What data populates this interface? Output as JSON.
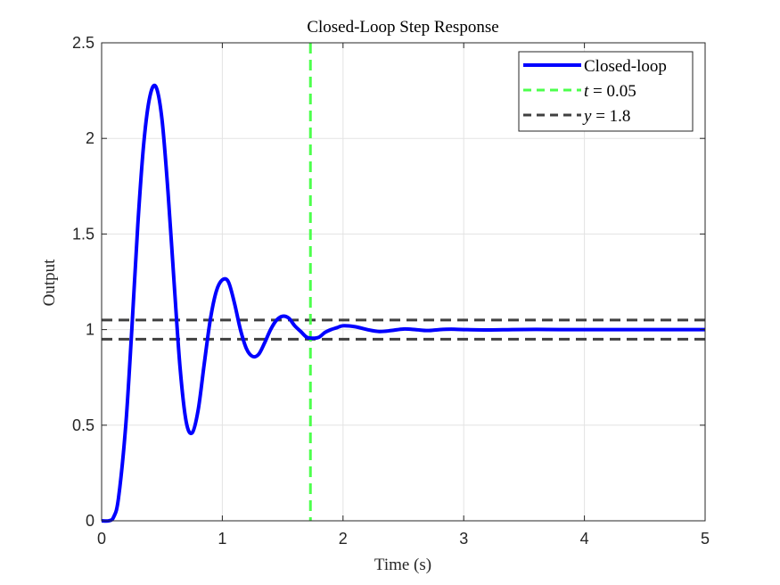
{
  "chart_data": {
    "type": "line",
    "title": "Closed-Loop Step Response",
    "xlabel": "Time (s)",
    "ylabel": "Output",
    "xlim": [
      0,
      5
    ],
    "ylim": [
      0,
      2.5
    ],
    "xticks": [
      0,
      1,
      2,
      3,
      4,
      5
    ],
    "xtick_labels": [
      "0",
      "1",
      "2",
      "3",
      "4",
      "5"
    ],
    "yticks": [
      0,
      0.5,
      1,
      1.5,
      2,
      2.5
    ],
    "ytick_labels": [
      "0",
      "0.5",
      "1",
      "1.5",
      "2",
      "2.5"
    ],
    "grid": true,
    "legend_position": "top-right",
    "legend": [
      {
        "label": "Closed-loop",
        "style": "solid",
        "color": "#0000ff"
      },
      {
        "label_italic": "t",
        "label_rest": " = 0.05",
        "style": "dashed",
        "color": "#4cff4c"
      },
      {
        "label_italic": "y",
        "label_rest": " = 1.8",
        "style": "dashed",
        "color": "#404040"
      }
    ],
    "series": [
      {
        "name": "Closed-loop",
        "color": "#0000ff",
        "x": [
          0,
          0.06,
          0.1,
          0.14,
          0.2,
          0.25,
          0.3,
          0.35,
          0.4,
          0.45,
          0.5,
          0.55,
          0.6,
          0.65,
          0.7,
          0.75,
          0.8,
          0.85,
          0.9,
          0.95,
          1.0,
          1.05,
          1.1,
          1.15,
          1.2,
          1.25,
          1.3,
          1.35,
          1.4,
          1.45,
          1.5,
          1.55,
          1.6,
          1.65,
          1.7,
          1.75,
          1.8,
          1.85,
          1.9,
          1.95,
          2.0,
          2.1,
          2.2,
          2.3,
          2.4,
          2.5,
          2.6,
          2.7,
          2.8,
          2.9,
          3.0,
          3.2,
          3.4,
          3.6,
          3.8,
          4.0,
          4.2,
          4.4,
          4.6,
          4.8,
          5.0
        ],
        "y": [
          0,
          0.0,
          0.02,
          0.12,
          0.5,
          1.0,
          1.55,
          1.98,
          2.22,
          2.27,
          2.1,
          1.72,
          1.25,
          0.8,
          0.52,
          0.46,
          0.58,
          0.82,
          1.05,
          1.2,
          1.26,
          1.25,
          1.14,
          1.0,
          0.9,
          0.86,
          0.87,
          0.93,
          1.0,
          1.05,
          1.07,
          1.06,
          1.02,
          0.99,
          0.96,
          0.955,
          0.96,
          0.985,
          1.0,
          1.01,
          1.02,
          1.015,
          1.0,
          0.99,
          0.995,
          1.003,
          1.0,
          0.995,
          1.0,
          1.002,
          1.0,
          0.998,
          1.0,
          1.001,
          1.0,
          1.0,
          1.0,
          1.0,
          1.0,
          1.0,
          1.0
        ]
      }
    ],
    "vlines": [
      {
        "x": 1.73,
        "color": "#4cff4c",
        "style": "dashed"
      }
    ],
    "hlines": [
      {
        "y": 1.05,
        "color": "#404040",
        "style": "dashed"
      },
      {
        "y": 0.95,
        "color": "#404040",
        "style": "dashed"
      }
    ]
  }
}
